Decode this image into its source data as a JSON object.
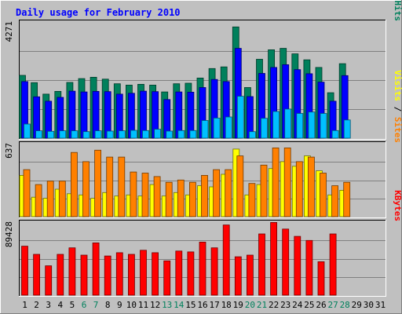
{
  "chart_data": {
    "type": "bar",
    "title": "Daily usage for February 2010",
    "categories": [
      "1",
      "2",
      "3",
      "4",
      "5",
      "6",
      "7",
      "8",
      "9",
      "10",
      "11",
      "12",
      "13",
      "14",
      "15",
      "16",
      "17",
      "18",
      "19",
      "20",
      "21",
      "22",
      "23",
      "24",
      "25",
      "26",
      "27",
      "28",
      "29",
      "30",
      "31"
    ],
    "weekend_days": [
      "6",
      "7",
      "13",
      "14",
      "20",
      "21",
      "27",
      "28"
    ],
    "panels": [
      {
        "name": "hits-files-pages",
        "max_label": "4271",
        "ylim": [
          0,
          4271
        ],
        "right_labels": [
          {
            "text": "Pages",
            "color": "#00c0ff"
          },
          {
            "text": "Files",
            "color": "#0000ff"
          },
          {
            "text": "Hits",
            "color": "#00805c"
          }
        ],
        "series": [
          {
            "name": "Hits",
            "color": "#00805c",
            "values": [
              2310,
              2040,
              1620,
              1720,
              2050,
              2190,
              2240,
              2170,
              2000,
              1950,
              1980,
              1950,
              1700,
              2000,
              2020,
              2210,
              2560,
              2620,
              4090,
              1860,
              2900,
              3250,
              3300,
              3100,
              2880,
              2600,
              1670,
              2740,
              0,
              0,
              0
            ]
          },
          {
            "name": "Files",
            "color": "#0000ff",
            "values": [
              2080,
              1520,
              1360,
              1500,
              1730,
              1700,
              1720,
              1710,
              1620,
              1650,
              1730,
              1710,
              1420,
              1700,
              1690,
              1860,
              2160,
              2080,
              3300,
              1530,
              2380,
              2600,
              2700,
              2520,
              2370,
              2060,
              1360,
              2300,
              0,
              0,
              0
            ]
          },
          {
            "name": "Pages",
            "color": "#00c0ff",
            "values": [
              520,
              270,
              250,
              270,
              270,
              240,
              270,
              260,
              270,
              290,
              280,
              330,
              260,
              280,
              280,
              650,
              740,
              780,
              1540,
              240,
              730,
              980,
              1070,
              910,
              960,
              910,
              280,
              670,
              0,
              0,
              0
            ]
          }
        ]
      },
      {
        "name": "visits-sites",
        "max_label": "637",
        "ylim": [
          0,
          637
        ],
        "right_labels": [
          {
            "text": "Visits",
            "color": "#ffff00"
          },
          {
            "text": "Sites",
            "color": "#ff8000"
          }
        ],
        "series": [
          {
            "name": "Visits",
            "color": "#ffff00",
            "values": [
              360,
              170,
              160,
              240,
              200,
              190,
              160,
              210,
              180,
              190,
              180,
              280,
              180,
              210,
              190,
              270,
              260,
              370,
              590,
              190,
              280,
              420,
              480,
              440,
              530,
              400,
              190,
              230,
              0,
              0,
              0
            ]
          },
          {
            "name": "Sites",
            "color": "#ff8000",
            "values": [
              410,
              280,
              310,
              310,
              560,
              480,
              580,
              520,
              520,
              390,
              380,
              350,
              300,
              320,
              300,
              360,
              410,
              410,
              530,
              290,
              450,
              600,
              600,
              480,
              520,
              380,
              270,
              300,
              0,
              0,
              0
            ]
          }
        ]
      },
      {
        "name": "kbytes",
        "max_label": "89428",
        "ylim": [
          0,
          89428
        ],
        "right_labels": [
          {
            "text": "KBytes",
            "color": "#ff0000"
          }
        ],
        "series": [
          {
            "name": "KBytes",
            "color": "#ff0000",
            "values": [
              60000,
              50000,
              36000,
              50000,
              58000,
              49000,
              64000,
              48000,
              52000,
              50000,
              55000,
              52000,
              42000,
              54000,
              53000,
              65000,
              58000,
              86000,
              47000,
              49000,
              75000,
              89000,
              81000,
              72000,
              67000,
              41000,
              75000,
              0,
              0,
              0,
              0
            ]
          }
        ]
      }
    ]
  }
}
